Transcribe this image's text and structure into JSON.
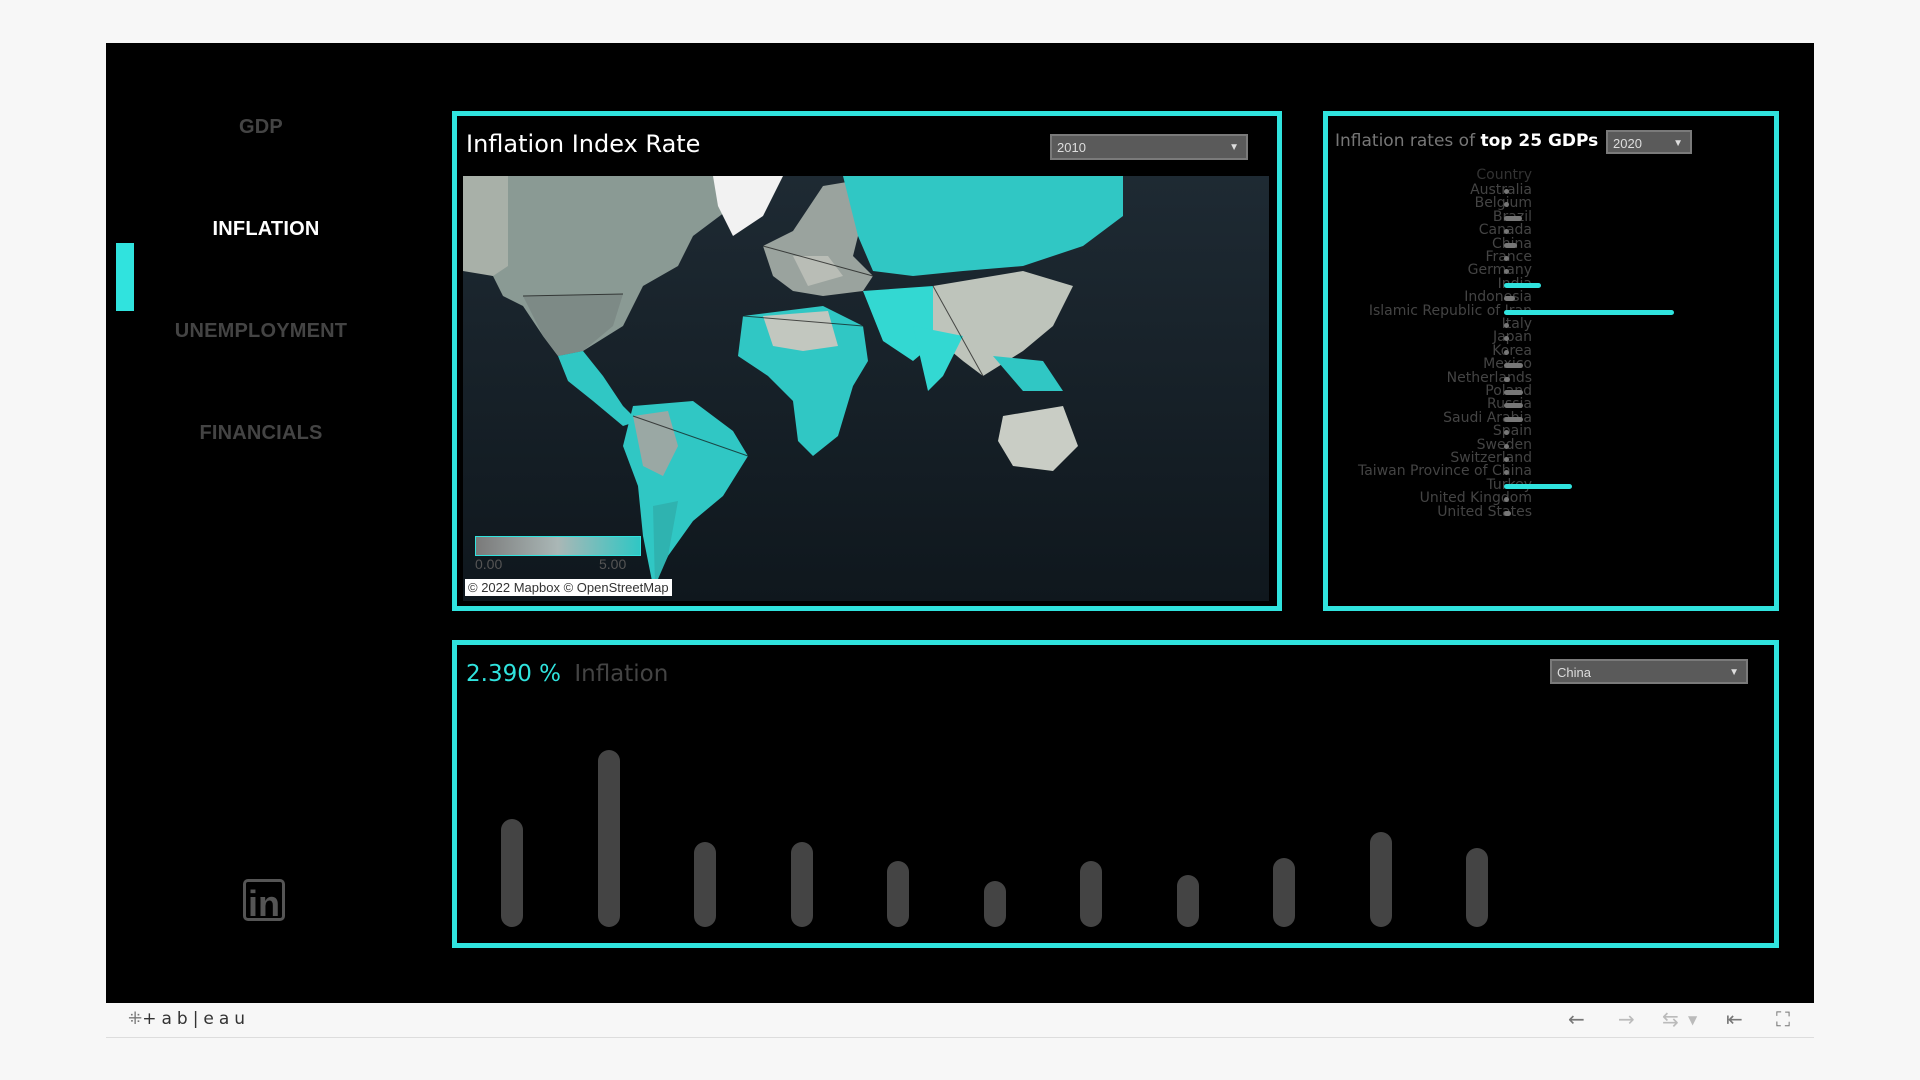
{
  "nav": {
    "items": [
      {
        "label": "GDP",
        "active": false
      },
      {
        "label": "INFLATION",
        "active": true
      },
      {
        "label": "UNEMPLOYMENT",
        "active": false
      },
      {
        "label": "FINANCIALS",
        "active": false
      }
    ],
    "accent": "#30e3de"
  },
  "map_panel": {
    "title": "Inflation Index Rate",
    "year_select": "2010",
    "legend_min": "0.00",
    "legend_max": "5.00",
    "attribution": "© 2022 Mapbox  © OpenStreetMap"
  },
  "bars_panel": {
    "title_prefix": "Inflation rates of ",
    "title_bold": "top 25 GDPs",
    "year_select": "2020",
    "column_header": "Country"
  },
  "column_panel": {
    "value": "2.390 %",
    "label": "Inflation",
    "country_select": "China"
  },
  "footer": {
    "brand": "+ab|eau",
    "icons": [
      "undo-icon",
      "redo-icon",
      "revert-icon",
      "reset-icon",
      "fullscreen-icon"
    ]
  },
  "chart_data": [
    {
      "type": "bar",
      "orientation": "horizontal",
      "categories": [
        "Australia",
        "Belgium",
        "Brazil",
        "Canada",
        "China",
        "France",
        "Germany",
        "India",
        "Indonesia",
        "Islamic Republic of Iran",
        "Italy",
        "Japan",
        "Korea",
        "Mexico",
        "Netherlands",
        "Poland",
        "Russia",
        "Saudi Arabia",
        "Spain",
        "Sweden",
        "Switzerland",
        "Taiwan Province of China",
        "Turkey",
        "United Kingdom",
        "United States"
      ],
      "values": [
        0.9,
        0.7,
        3.2,
        0.7,
        2.4,
        0.5,
        0.4,
        6.6,
        2.0,
        30.6,
        -0.1,
        0.0,
        0.5,
        3.4,
        1.1,
        3.4,
        3.4,
        3.4,
        -0.3,
        0.7,
        -0.7,
        -0.2,
        12.3,
        0.9,
        1.2
      ],
      "highlight": [
        "India",
        "Islamic Republic of Iran",
        "Turkey"
      ],
      "highlight_color": "#30e3de",
      "base_color": "#777777"
    },
    {
      "type": "bar",
      "orientation": "vertical",
      "series_name": "Inflation",
      "values": [
        3.3,
        5.4,
        2.6,
        2.6,
        2.0,
        1.4,
        2.0,
        1.6,
        2.1,
        2.9,
        2.4
      ],
      "color": "#444444"
    }
  ]
}
